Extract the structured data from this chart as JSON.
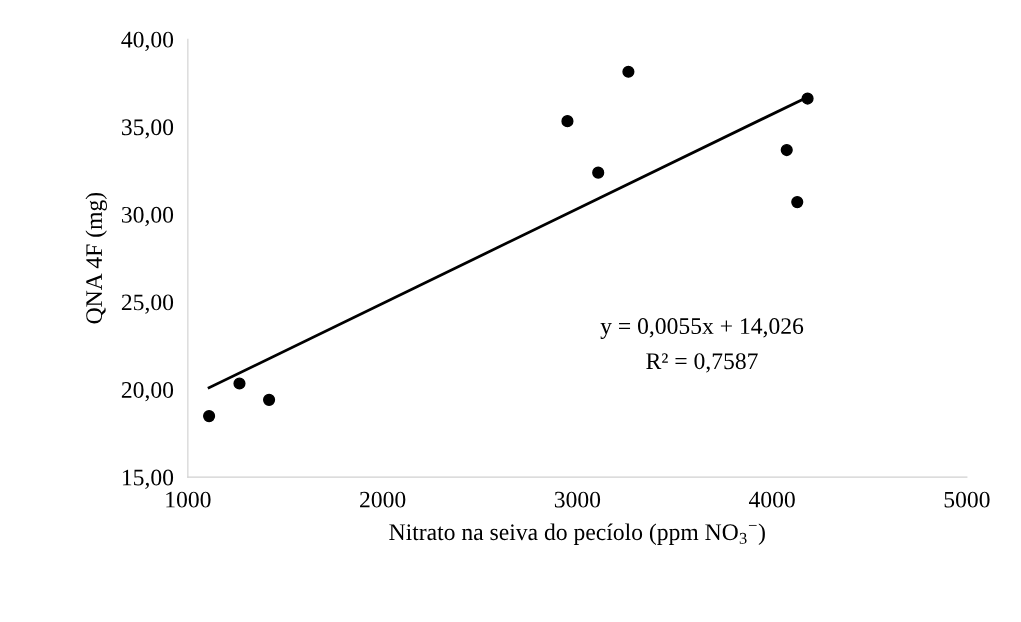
{
  "chart_data": {
    "type": "scatter",
    "xlabel": "Nitrato na seiva do pecíolo (ppm NO$_{3}$$^{−}$)",
    "ylabel": "QNA 4F (mg)",
    "x": [
      1109,
      1265,
      1417,
      2949,
      3107,
      3262,
      4075,
      4129,
      4182
    ],
    "series": [
      {
        "marker": "circle",
        "color": "#000000",
        "values": [
          18.48,
          20.34,
          19.41,
          35.32,
          32.38,
          38.14,
          33.67,
          30.7,
          36.61
        ]
      },
      {
        "type": "line",
        "marker": "none",
        "color": "#000000",
        "x": [
          1109,
          4182
        ],
        "values": [
          20.1,
          36.7
        ]
      }
    ],
    "xlim": [
      1000,
      5000
    ],
    "xticks": [
      1000,
      2000,
      3000,
      4000,
      5000
    ],
    "ylim": [
      15,
      40
    ],
    "yticks": [
      {
        "value": 15,
        "label": "15,00"
      },
      {
        "value": 20,
        "label": "20,00"
      },
      {
        "value": 25,
        "label": "25,00"
      },
      {
        "value": 30,
        "label": "30,00"
      },
      {
        "value": 35,
        "label": "35,00"
      },
      {
        "value": 40,
        "label": "40,00"
      }
    ],
    "annotations": [
      "y = 0,0055x + 14,026",
      "R² = 0,7587"
    ],
    "grid": false,
    "legend": false
  }
}
